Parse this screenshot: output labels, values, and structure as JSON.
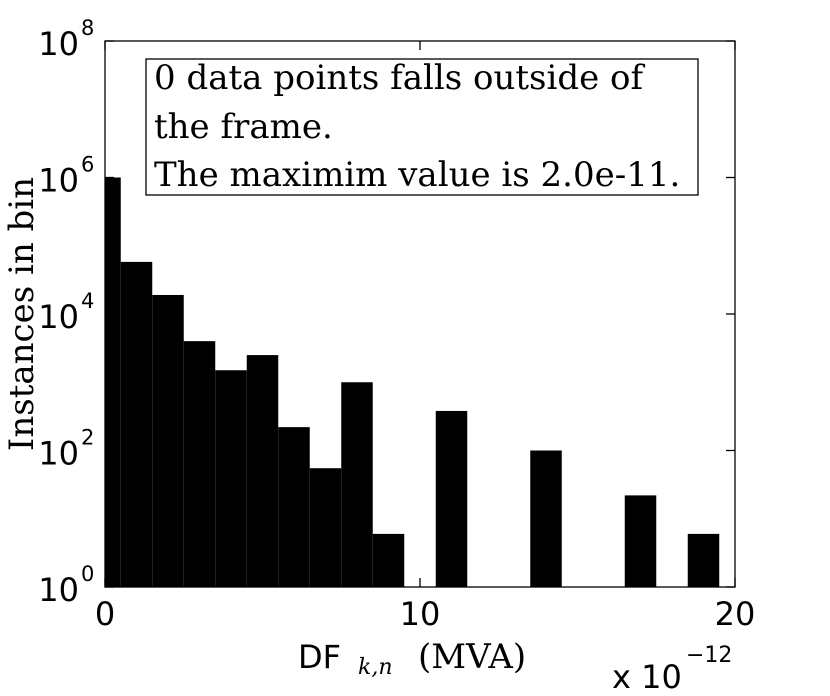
{
  "chart_data": {
    "type": "bar",
    "scale_y": "log",
    "xlim": [
      0,
      20
    ],
    "ylim": [
      1,
      100000000
    ],
    "x_multiplier": "x 10",
    "x_multiplier_exponent": "−12",
    "xticks": [
      {
        "value": 0,
        "label": "0"
      },
      {
        "value": 10,
        "label": "10"
      },
      {
        "value": 20,
        "label": "20"
      }
    ],
    "yticks": [
      {
        "value": 1,
        "base": "10",
        "exp": "0"
      },
      {
        "value": 100,
        "base": "10",
        "exp": "2"
      },
      {
        "value": 10000,
        "base": "10",
        "exp": "4"
      },
      {
        "value": 1000000,
        "base": "10",
        "exp": "6"
      },
      {
        "value": 100000000,
        "base": "10",
        "exp": "8"
      }
    ],
    "ylabel": "Instances in bin",
    "xlabel_prefix": "DF",
    "xlabel_subscript": "k,n",
    "xlabel_suffix": "(MVA)",
    "annotation": {
      "lines": [
        "0 data points falls outside of",
        "the frame.",
        "The maximim value is 2.0e-11."
      ]
    },
    "bins": [
      {
        "x0": 0.0,
        "x1": 0.5,
        "count": 1000000
      },
      {
        "x0": 0.5,
        "x1": 1.5,
        "count": 58000
      },
      {
        "x0": 1.5,
        "x1": 2.5,
        "count": 19000
      },
      {
        "x0": 2.5,
        "x1": 3.5,
        "count": 4000
      },
      {
        "x0": 3.5,
        "x1": 4.5,
        "count": 1500
      },
      {
        "x0": 4.5,
        "x1": 5.5,
        "count": 2500
      },
      {
        "x0": 5.5,
        "x1": 6.5,
        "count": 220
      },
      {
        "x0": 6.5,
        "x1": 7.5,
        "count": 55
      },
      {
        "x0": 7.5,
        "x1": 8.5,
        "count": 1000
      },
      {
        "x0": 8.5,
        "x1": 9.5,
        "count": 6
      },
      {
        "x0": 10.5,
        "x1": 11.5,
        "count": 380
      },
      {
        "x0": 13.5,
        "x1": 14.5,
        "count": 100
      },
      {
        "x0": 16.5,
        "x1": 17.5,
        "count": 22
      },
      {
        "x0": 18.5,
        "x1": 19.5,
        "count": 6
      }
    ]
  }
}
